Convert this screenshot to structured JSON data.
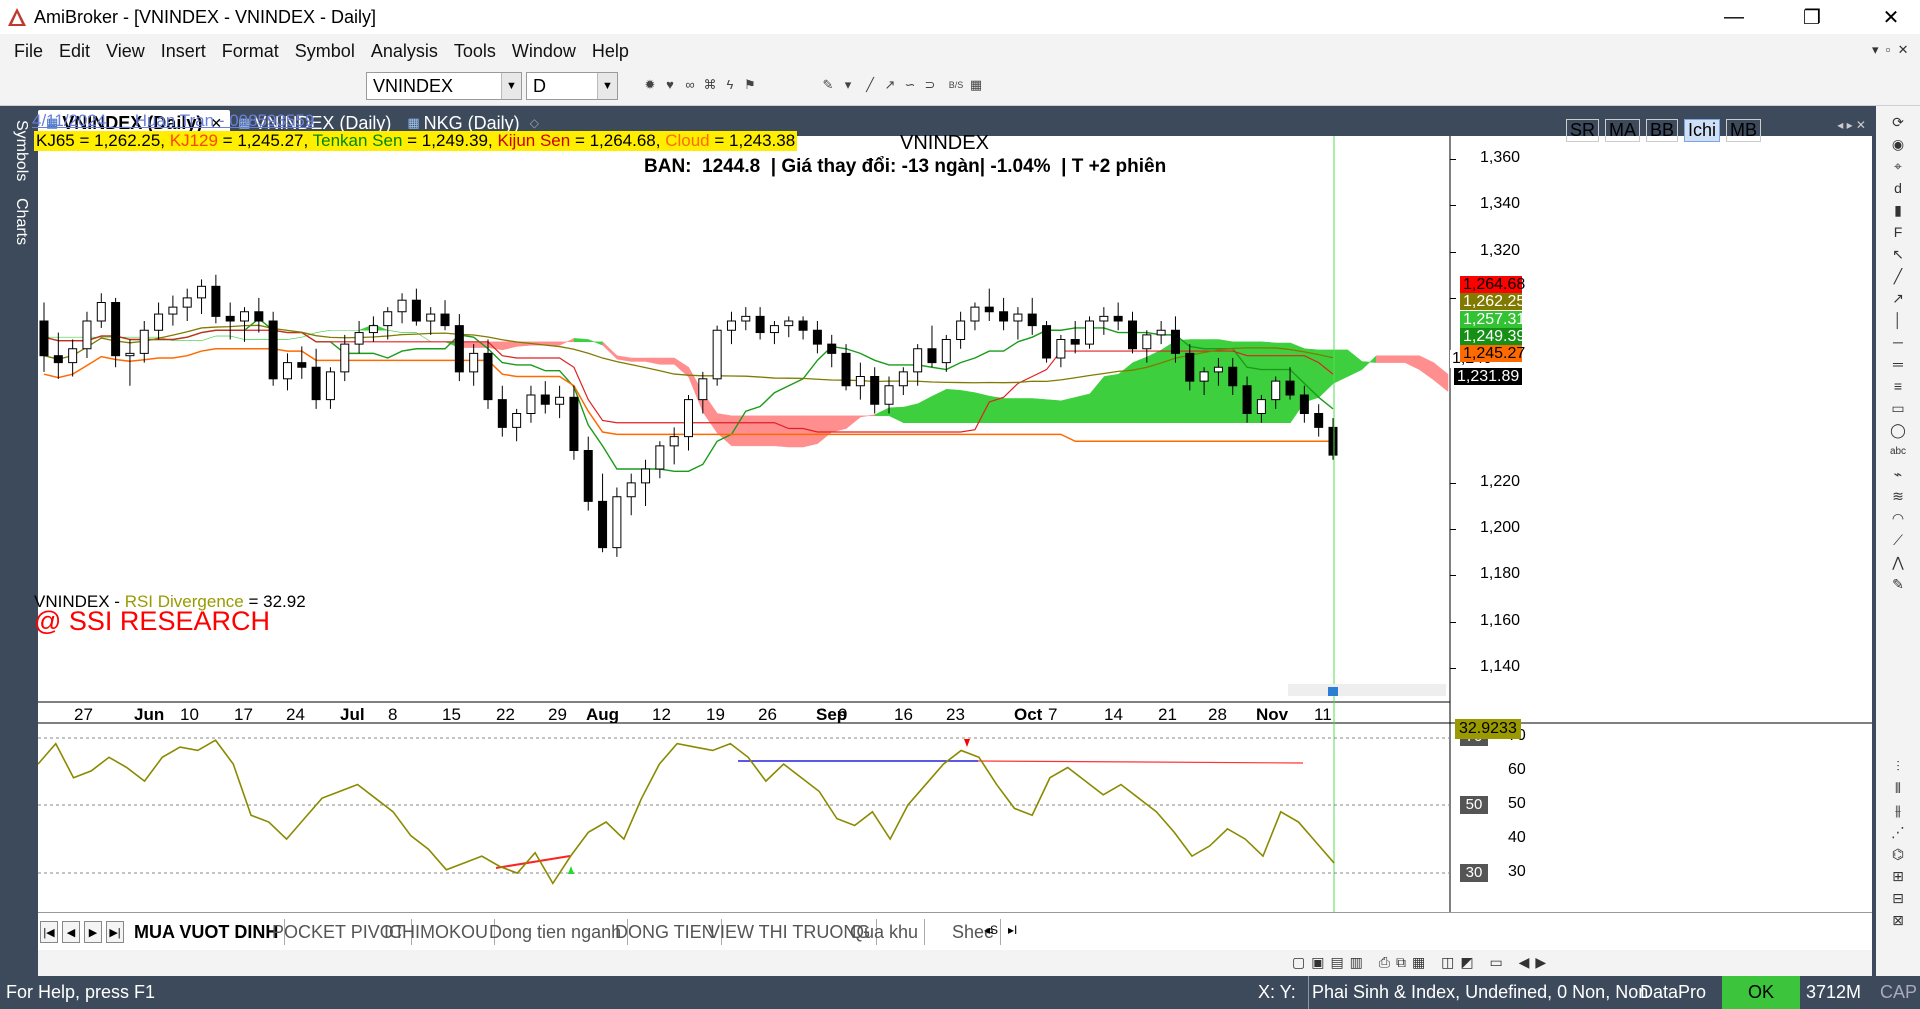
{
  "window": {
    "title": "AmiBroker - [VNINDEX - VNINDEX - Daily]",
    "min": "—",
    "max": "❐",
    "close": "✕"
  },
  "menu": [
    "File",
    "Edit",
    "View",
    "Insert",
    "Format",
    "Symbol",
    "Analysis",
    "Tools",
    "Window",
    "Help"
  ],
  "toolbar": {
    "symbol": "VNINDEX",
    "interval": "D"
  },
  "sidebar": {
    "tab1": "Symbols",
    "tab2": "Charts"
  },
  "doc_tabs": [
    "VNINDEX (Daily)",
    "VNINDEX (Daily)",
    "NKG (Daily)"
  ],
  "chart": {
    "header_line": "4/11/2024      Huan Tran - 098593559",
    "legend": [
      {
        "label": "KJ65",
        "value": " = 1,262.25, ",
        "color": "#000000"
      },
      {
        "label": "KJ129",
        "value": " = 1,245.27, ",
        "color": "#ff4400"
      },
      {
        "label": "Tenkan Sen",
        "value": " = 1,249.39, ",
        "color": "#008800"
      },
      {
        "label": "Kijun Sen",
        "value": " = 1,264.68, ",
        "color": "#cc0000"
      },
      {
        "label": "Cloud",
        "value": " = 1,243.38",
        "color": "#ff6a00"
      }
    ],
    "symbol_title": "VNINDEX",
    "info": "BAN:  1244.8  | Giá thay đổi: -13 ngàn| -1.04%  | T +2 phiên",
    "mode_buttons": [
      "SR",
      "MA",
      "BB",
      "Ichi",
      "MB"
    ],
    "active_mode": "Ichi",
    "y_ticks": [
      "1,360",
      "1,340",
      "1,320",
      "1,300",
      "1,220",
      "1,200",
      "1,180",
      "1,160",
      "1,140"
    ],
    "price_tags": [
      {
        "text": "1,264.68",
        "bg": "#ff0000",
        "fg": "#000000"
      },
      {
        "text": "1,262.25",
        "bg": "#807b00",
        "fg": "#ffffff"
      },
      {
        "text": "1,257.31",
        "bg": "#33c233",
        "fg": "#ffffff"
      },
      {
        "text": "1,249.39",
        "bg": "#168f16",
        "fg": "#ffffff"
      },
      {
        "text": "1,245.27",
        "bg": "#ff6a00",
        "fg": "#000000"
      },
      {
        "text": "1,231.89",
        "bg": "#000000",
        "fg": "#ffffff"
      }
    ],
    "x_labels": [
      "27",
      "Jun",
      "10",
      "17",
      "24",
      "Jul",
      "8",
      "15",
      "22",
      "29",
      "Aug",
      "12",
      "19",
      "26",
      "Sep",
      "9",
      "16",
      "23",
      "Oct",
      "7",
      "14",
      "21",
      "28",
      "Nov",
      "11"
    ],
    "partial_tick": "1,240"
  },
  "rsi": {
    "title_sym": "VNINDEX - ",
    "title_name": "RSI Divergence",
    "title_val": " = 32.92",
    "watermark": "@ SSI RESEARCH",
    "y_labels": [
      "70",
      "60",
      "50",
      "40",
      "30"
    ],
    "current": "32.9233"
  },
  "sheets": [
    "MUA VUOT DINH",
    "POCKET PIVOT",
    "ICHIMOKOU",
    "Dong tien nganh",
    "DONG TIEN",
    "VIEW THI TRUONG",
    "Qua khu",
    "Shee"
  ],
  "status": {
    "help": "For Help, press F1",
    "xy": "X: Y:",
    "db": "Phai Sinh & Index, Undefined, 0 Non, Non",
    "plugin": "DataPro",
    "ok": "OK",
    "mem": "3712M",
    "caps": "CAP"
  },
  "chart_data": {
    "type": "candlestick",
    "y_range": [
      1130,
      1370
    ],
    "candles": [
      [
        1290,
        1298,
        1268,
        1275
      ],
      [
        1275,
        1285,
        1265,
        1272
      ],
      [
        1272,
        1282,
        1266,
        1278
      ],
      [
        1278,
        1294,
        1274,
        1290
      ],
      [
        1290,
        1302,
        1287,
        1298
      ],
      [
        1298,
        1300,
        1270,
        1275
      ],
      [
        1275,
        1282,
        1262,
        1276
      ],
      [
        1276,
        1290,
        1272,
        1286
      ],
      [
        1286,
        1298,
        1282,
        1293
      ],
      [
        1293,
        1301,
        1288,
        1296
      ],
      [
        1296,
        1304,
        1290,
        1300
      ],
      [
        1300,
        1308,
        1293,
        1305
      ],
      [
        1305,
        1310,
        1289,
        1292
      ],
      [
        1292,
        1298,
        1282,
        1290
      ],
      [
        1290,
        1296,
        1281,
        1294
      ],
      [
        1294,
        1300,
        1285,
        1290
      ],
      [
        1290,
        1294,
        1262,
        1265
      ],
      [
        1265,
        1276,
        1260,
        1272
      ],
      [
        1272,
        1279,
        1265,
        1270
      ],
      [
        1270,
        1278,
        1252,
        1256
      ],
      [
        1256,
        1270,
        1252,
        1268
      ],
      [
        1268,
        1284,
        1264,
        1280
      ],
      [
        1280,
        1290,
        1276,
        1285
      ],
      [
        1285,
        1292,
        1281,
        1288
      ],
      [
        1288,
        1296,
        1282,
        1294
      ],
      [
        1294,
        1302,
        1289,
        1299
      ],
      [
        1299,
        1304,
        1288,
        1290
      ],
      [
        1290,
        1296,
        1284,
        1293
      ],
      [
        1293,
        1299,
        1286,
        1288
      ],
      [
        1288,
        1293,
        1264,
        1268
      ],
      [
        1268,
        1280,
        1262,
        1276
      ],
      [
        1276,
        1282,
        1252,
        1256
      ],
      [
        1256,
        1262,
        1240,
        1244
      ],
      [
        1244,
        1252,
        1238,
        1250
      ],
      [
        1250,
        1262,
        1246,
        1258
      ],
      [
        1258,
        1264,
        1250,
        1254
      ],
      [
        1254,
        1262,
        1248,
        1257
      ],
      [
        1257,
        1262,
        1230,
        1234
      ],
      [
        1234,
        1240,
        1208,
        1212
      ],
      [
        1212,
        1224,
        1190,
        1192
      ],
      [
        1192,
        1218,
        1188,
        1214
      ],
      [
        1214,
        1224,
        1206,
        1220
      ],
      [
        1220,
        1230,
        1210,
        1226
      ],
      [
        1226,
        1238,
        1222,
        1236
      ],
      [
        1236,
        1244,
        1228,
        1240
      ],
      [
        1240,
        1258,
        1234,
        1256
      ],
      [
        1256,
        1268,
        1250,
        1265
      ],
      [
        1265,
        1288,
        1262,
        1286
      ],
      [
        1286,
        1294,
        1280,
        1290
      ],
      [
        1290,
        1296,
        1286,
        1292
      ],
      [
        1292,
        1296,
        1282,
        1285
      ],
      [
        1285,
        1290,
        1280,
        1288
      ],
      [
        1288,
        1292,
        1283,
        1290
      ],
      [
        1290,
        1292,
        1282,
        1286
      ],
      [
        1286,
        1290,
        1276,
        1280
      ],
      [
        1280,
        1284,
        1270,
        1276
      ],
      [
        1276,
        1280,
        1260,
        1262
      ],
      [
        1262,
        1272,
        1256,
        1266
      ],
      [
        1266,
        1270,
        1250,
        1254
      ],
      [
        1254,
        1266,
        1250,
        1262
      ],
      [
        1262,
        1270,
        1258,
        1268
      ],
      [
        1268,
        1280,
        1262,
        1278
      ],
      [
        1278,
        1288,
        1270,
        1272
      ],
      [
        1272,
        1284,
        1268,
        1282
      ],
      [
        1282,
        1294,
        1278,
        1290
      ],
      [
        1290,
        1298,
        1286,
        1296
      ],
      [
        1296,
        1304,
        1290,
        1294
      ],
      [
        1294,
        1300,
        1286,
        1290
      ],
      [
        1290,
        1296,
        1282,
        1293
      ],
      [
        1293,
        1300,
        1284,
        1288
      ],
      [
        1288,
        1290,
        1272,
        1274
      ],
      [
        1274,
        1284,
        1270,
        1282
      ],
      [
        1282,
        1290,
        1276,
        1280
      ],
      [
        1280,
        1292,
        1278,
        1290
      ],
      [
        1290,
        1296,
        1284,
        1292
      ],
      [
        1292,
        1298,
        1286,
        1290
      ],
      [
        1290,
        1294,
        1276,
        1278
      ],
      [
        1278,
        1286,
        1272,
        1284
      ],
      [
        1284,
        1290,
        1280,
        1286
      ],
      [
        1286,
        1292,
        1272,
        1276
      ],
      [
        1276,
        1280,
        1260,
        1264
      ],
      [
        1264,
        1270,
        1258,
        1268
      ],
      [
        1268,
        1274,
        1262,
        1270
      ],
      [
        1270,
        1274,
        1258,
        1262
      ],
      [
        1262,
        1266,
        1246,
        1250
      ],
      [
        1250,
        1258,
        1246,
        1256
      ],
      [
        1256,
        1266,
        1252,
        1264
      ],
      [
        1264,
        1270,
        1256,
        1258
      ],
      [
        1258,
        1262,
        1246,
        1250
      ],
      [
        1250,
        1254,
        1240,
        1244
      ],
      [
        1244,
        1248,
        1230,
        1232
      ]
    ],
    "rsi_values": [
      62,
      68,
      58,
      60,
      64,
      61,
      57,
      64,
      67,
      66,
      69,
      62,
      47,
      45,
      40,
      46,
      52,
      54,
      56,
      52,
      48,
      41,
      37,
      31,
      33,
      35,
      32,
      30,
      36,
      27,
      35,
      42,
      45,
      40,
      52,
      62,
      68,
      67,
      66,
      68,
      64,
      57,
      62,
      58,
      54,
      46,
      44,
      48,
      40,
      50,
      56,
      62,
      66,
      64,
      56,
      49,
      47,
      58,
      61,
      57,
      53,
      56,
      52,
      48,
      42,
      35,
      38,
      43,
      40,
      35,
      48,
      45,
      39,
      33
    ],
    "rsi_range": [
      28,
      72
    ]
  }
}
